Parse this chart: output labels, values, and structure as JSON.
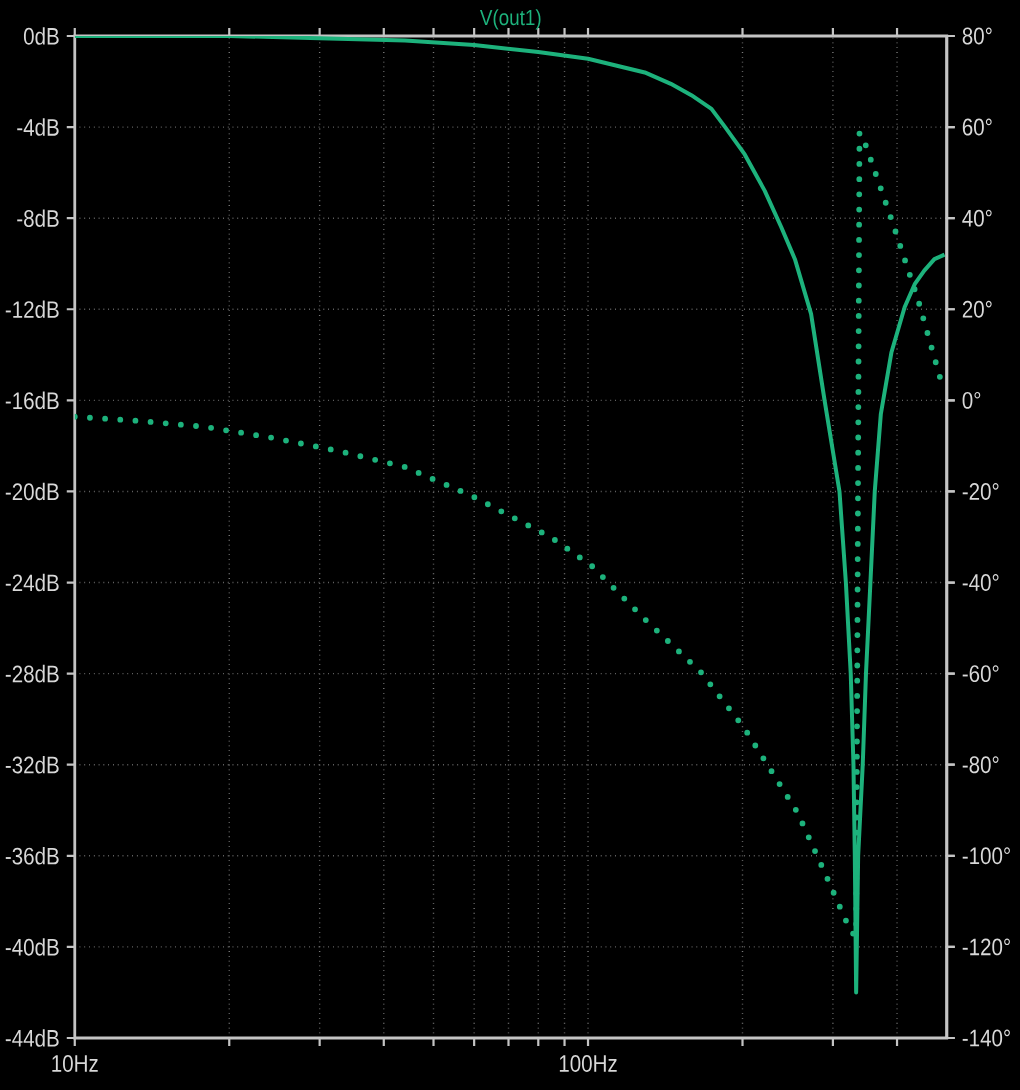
{
  "chart_data": {
    "type": "line",
    "title": "V(out1)",
    "log": "x",
    "grid": true,
    "xlim": [
      10,
      500
    ],
    "ylim": [
      -44,
      0
    ],
    "y2lim": [
      -140,
      80
    ],
    "xticks": [
      {
        "value": 10,
        "label": "10Hz"
      },
      {
        "value": 20,
        "label": null
      },
      {
        "value": 30,
        "label": null
      },
      {
        "value": 40,
        "label": null
      },
      {
        "value": 50,
        "label": null
      },
      {
        "value": 60,
        "label": null
      },
      {
        "value": 70,
        "label": null
      },
      {
        "value": 80,
        "label": null
      },
      {
        "value": 90,
        "label": null
      },
      {
        "value": 100,
        "label": "100Hz"
      },
      {
        "value": 200,
        "label": null
      },
      {
        "value": 300,
        "label": null
      },
      {
        "value": 400,
        "label": null
      }
    ],
    "yticks": [
      {
        "value": 0,
        "label": "0dB"
      },
      {
        "value": -4,
        "label": "-4dB"
      },
      {
        "value": -8,
        "label": "-8dB"
      },
      {
        "value": -12,
        "label": "-12dB"
      },
      {
        "value": -16,
        "label": "-16dB"
      },
      {
        "value": -20,
        "label": "-20dB"
      },
      {
        "value": -24,
        "label": "-24dB"
      },
      {
        "value": -28,
        "label": "-28dB"
      },
      {
        "value": -32,
        "label": "-32dB"
      },
      {
        "value": -36,
        "label": "-36dB"
      },
      {
        "value": -40,
        "label": "-40dB"
      },
      {
        "value": -44,
        "label": "-44dB"
      }
    ],
    "y2ticks": [
      {
        "value": 80,
        "label": "80°"
      },
      {
        "value": 60,
        "label": "60°"
      },
      {
        "value": 40,
        "label": "40°"
      },
      {
        "value": 20,
        "label": "20°"
      },
      {
        "value": 0,
        "label": "0°"
      },
      {
        "value": -20,
        "label": "-20°"
      },
      {
        "value": -40,
        "label": "-40°"
      },
      {
        "value": -60,
        "label": "-60°"
      },
      {
        "value": -80,
        "label": "-80°"
      },
      {
        "value": -100,
        "label": "-100°"
      },
      {
        "value": -120,
        "label": "-120°"
      },
      {
        "value": -140,
        "label": "-140°"
      }
    ],
    "series": [
      {
        "color": "#1db27c",
        "line_style": "solid",
        "x": [
          10,
          20,
          30,
          44,
          60,
          80,
          100,
          129,
          145,
          159,
          174,
          185,
          202,
          221,
          238,
          253,
          272,
          289,
          309,
          318,
          325,
          329,
          331,
          333,
          336,
          343,
          348,
          355,
          362,
          372,
          390,
          414,
          433,
          452,
          473,
          495
        ],
        "values": [
          0,
          0,
          -0.1,
          -0.2,
          -0.4,
          -0.7,
          -1.0,
          -1.6,
          -2.1,
          -2.6,
          -3.2,
          -4.0,
          -5.2,
          -6.8,
          -8.4,
          -9.8,
          -12.2,
          -16,
          -20,
          -24,
          -28,
          -32,
          -36,
          -42,
          -36,
          -32,
          -28,
          -24,
          -20,
          -16.6,
          -13.9,
          -11.9,
          -10.9,
          -10.3,
          -9.8,
          -9.6
        ]
      },
      {
        "color": "#1db27c",
        "line_style": "dotted",
        "axis": "y2",
        "x": [
          10,
          13.3,
          17.9,
          24.2,
          32.6,
          43.9,
          59.2,
          84.8,
          101.6,
          128.9,
          166,
          202,
          256,
          289,
          325.6,
          333,
          338,
          348,
          390,
          439,
          488
        ],
        "values": [
          -3.6,
          -4.5,
          -5.8,
          -8.2,
          -11.1,
          -14.6,
          -20.9,
          -30.1,
          -36.3,
          -48,
          -59.7,
          -72.1,
          -90.5,
          -103.6,
          -116.8,
          -117.5,
          58.8,
          55.9,
          39.8,
          22.3,
          4
        ]
      }
    ]
  }
}
